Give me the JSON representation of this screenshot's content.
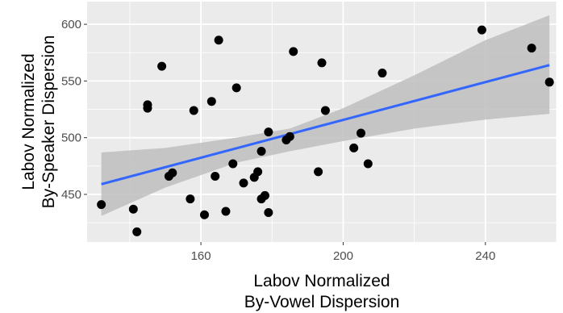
{
  "chart_data": {
    "type": "scatter",
    "title": "",
    "xlabel": [
      "Labov Normalized",
      "By-Vowel Dispersion"
    ],
    "ylabel": [
      "Labov Normalized",
      "By-Speaker Dispersion"
    ],
    "xlim": [
      128,
      260
    ],
    "ylim": [
      408,
      620
    ],
    "x_ticks": [
      160,
      200,
      240
    ],
    "y_ticks": [
      450,
      500,
      550,
      600
    ],
    "grid": true,
    "colors": {
      "panel": "#ebebeb",
      "grid_major": "#ffffff",
      "points": "#000000",
      "fit_line": "#3366ff",
      "confidence_band": "#bebebe"
    },
    "points": [
      [
        132,
        441
      ],
      [
        141,
        437
      ],
      [
        142,
        417
      ],
      [
        145,
        529
      ],
      [
        145,
        526
      ],
      [
        149,
        563
      ],
      [
        151,
        466
      ],
      [
        152,
        469
      ],
      [
        157,
        446
      ],
      [
        158,
        524
      ],
      [
        161,
        432
      ],
      [
        163,
        532
      ],
      [
        164,
        466
      ],
      [
        165,
        586
      ],
      [
        167,
        435
      ],
      [
        169,
        477
      ],
      [
        170,
        544
      ],
      [
        172,
        460
      ],
      [
        175,
        465
      ],
      [
        176,
        470
      ],
      [
        177,
        446
      ],
      [
        177,
        488
      ],
      [
        178,
        449
      ],
      [
        179,
        434
      ],
      [
        179,
        505
      ],
      [
        184,
        498
      ],
      [
        185,
        501
      ],
      [
        186,
        576
      ],
      [
        193,
        470
      ],
      [
        194,
        566
      ],
      [
        195,
        524
      ],
      [
        203,
        491
      ],
      [
        205,
        504
      ],
      [
        207,
        477
      ],
      [
        211,
        557
      ],
      [
        239,
        595
      ],
      [
        253,
        579
      ],
      [
        258,
        549
      ]
    ],
    "fit_line": {
      "x": [
        132,
        258
      ],
      "y": [
        459,
        564
      ]
    },
    "confidence_band": {
      "x": [
        132,
        150,
        170,
        185,
        200,
        220,
        240,
        258
      ],
      "lower": [
        431,
        456,
        478,
        488,
        497,
        508,
        516,
        521
      ],
      "upper": [
        487,
        491,
        500,
        508,
        526,
        555,
        586,
        608
      ]
    }
  }
}
